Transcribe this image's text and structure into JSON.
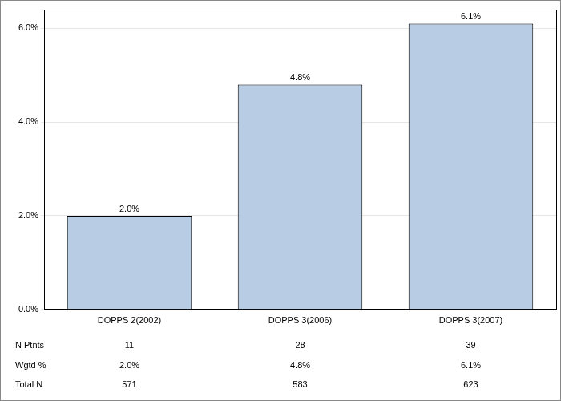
{
  "chart_data": {
    "type": "bar",
    "categories": [
      "DOPPS 2(2002)",
      "DOPPS 3(2006)",
      "DOPPS 3(2007)"
    ],
    "values": [
      2.0,
      4.8,
      6.1
    ],
    "value_labels": [
      "2.0%",
      "4.8%",
      "6.1%"
    ],
    "color": "#b8cce4",
    "ylim": [
      0,
      6.4
    ],
    "yticks": [
      {
        "value": 0,
        "label": "0.0%"
      },
      {
        "value": 2,
        "label": "2.0%"
      },
      {
        "value": 4,
        "label": "4.0%"
      },
      {
        "value": 6,
        "label": "6.0%"
      }
    ],
    "grid": true,
    "data_labels": true
  },
  "table": {
    "rows": [
      {
        "label": "N Ptnts",
        "values": [
          11,
          28,
          39
        ]
      },
      {
        "label": "Wgtd %",
        "values": [
          "2.0%",
          "4.8%",
          "6.1%"
        ]
      },
      {
        "label": "Total N",
        "values": [
          571,
          583,
          623
        ]
      }
    ]
  }
}
